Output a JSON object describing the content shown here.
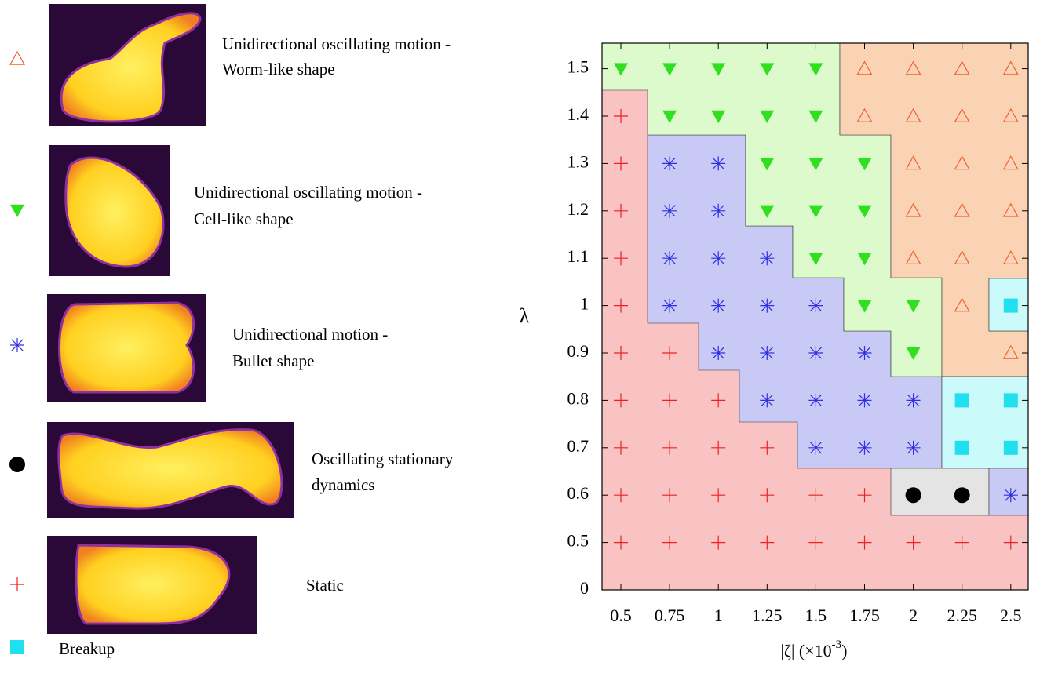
{
  "chart_data": {
    "type": "scatter",
    "y_label": "λ",
    "x_label": {
      "text": "|ζ| (×10",
      "superscript": "-3",
      "suffix": ")"
    },
    "xticks": [
      0.5,
      0.75,
      1,
      1.25,
      1.5,
      1.75,
      2,
      2.25,
      2.5
    ],
    "yticks": [
      0,
      0.5,
      0.6,
      0.7,
      0.8,
      0.9,
      1,
      1.1,
      1.2,
      1.3,
      1.4,
      1.5
    ],
    "series": [
      {
        "name": [
          "Unidirectional oscillating motion -",
          "Worm-like shape"
        ],
        "marker": "triangle-open",
        "color": "#f06030",
        "x": [
          1.75,
          2,
          2.25,
          2.5,
          1.75,
          2,
          2.25,
          2.5,
          2,
          2.25,
          2.5,
          2,
          2.25,
          2.5,
          2,
          2.25,
          2.5,
          2.25,
          2.5
        ],
        "y": [
          1.5,
          1.5,
          1.5,
          1.5,
          1.4,
          1.4,
          1.4,
          1.4,
          1.3,
          1.3,
          1.3,
          1.2,
          1.2,
          1.2,
          1.1,
          1.1,
          1.1,
          1,
          0.9
        ]
      },
      {
        "name": [
          "Unidirectional oscillating motion -",
          "Cell-like shape"
        ],
        "marker": "triangle-down",
        "color": "#30e020",
        "x": [
          0.5,
          0.75,
          1,
          1.25,
          1.5,
          0.75,
          1,
          1.25,
          1.5,
          1.25,
          1.5,
          1.75,
          1.25,
          1.5,
          1.75,
          1.5,
          1.75,
          1.75,
          2,
          2
        ],
        "y": [
          1.5,
          1.5,
          1.5,
          1.5,
          1.5,
          1.4,
          1.4,
          1.4,
          1.4,
          1.3,
          1.3,
          1.3,
          1.2,
          1.2,
          1.2,
          1.1,
          1.1,
          1,
          1,
          0.9
        ]
      },
      {
        "name": [
          "Unidirectional motion -",
          "Bullet shape"
        ],
        "marker": "asterisk",
        "color": "#3030e0",
        "x": [
          0.75,
          1,
          0.75,
          1,
          0.75,
          1,
          1.25,
          0.75,
          1,
          1.25,
          1.5,
          1,
          1.25,
          1.5,
          1.75,
          1.25,
          1.5,
          1.75,
          2,
          1.5,
          1.75,
          2,
          2.5
        ],
        "y": [
          1.3,
          1.3,
          1.2,
          1.2,
          1.1,
          1.1,
          1.1,
          1,
          1,
          1,
          1,
          0.9,
          0.9,
          0.9,
          0.9,
          0.8,
          0.8,
          0.8,
          0.8,
          0.7,
          0.7,
          0.7,
          0.6
        ]
      },
      {
        "name": [
          "Oscillating stationary",
          "dynamics"
        ],
        "marker": "circle",
        "color": "#000000",
        "x": [
          2,
          2.25
        ],
        "y": [
          0.6,
          0.6
        ]
      },
      {
        "name": [
          "Static"
        ],
        "marker": "plus",
        "color": "#f02020",
        "x": [
          0.5,
          0.5,
          0.5,
          0.5,
          0.5,
          0.5,
          0.75,
          0.5,
          0.75,
          1,
          0.5,
          0.75,
          1,
          1.25,
          0.5,
          0.75,
          1,
          1.25,
          1.5,
          1.75,
          0.5,
          0.75,
          1,
          1.25,
          1.5,
          1.75,
          2,
          2.25,
          2.5
        ],
        "y": [
          1.4,
          1.3,
          1.2,
          1.1,
          1,
          0.9,
          0.9,
          0.8,
          0.8,
          0.8,
          0.7,
          0.7,
          0.7,
          0.7,
          0.6,
          0.6,
          0.6,
          0.6,
          0.6,
          0.6,
          0.5,
          0.5,
          0.5,
          0.5,
          0.5,
          0.5,
          0.5,
          0.5,
          0.5
        ]
      },
      {
        "name": [
          "Breakup"
        ],
        "marker": "square",
        "color": "#20e0f0",
        "x": [
          2.5,
          2.25,
          2.5,
          2.25,
          2.5
        ],
        "y": [
          1,
          0.8,
          0.8,
          0.7,
          0.7
        ]
      }
    ]
  }
}
